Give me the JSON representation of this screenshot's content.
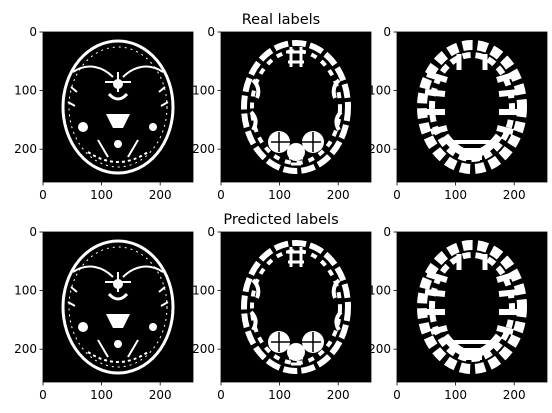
{
  "figure": {
    "row_titles": [
      "Real labels",
      "Predicted labels"
    ]
  },
  "chart_data": {
    "type": "image-grid",
    "rows": 2,
    "cols": 3,
    "image_size": [
      256,
      256
    ],
    "xticks": [
      0,
      100,
      200
    ],
    "yticks": [
      0,
      100,
      200
    ],
    "xlim": [
      0,
      256
    ],
    "ylim": [
      256,
      0
    ],
    "colormap": "gray",
    "background_color": "#000000",
    "foreground_color": "#ffffff",
    "panels": [
      {
        "row": 0,
        "col": 0,
        "title": "",
        "content": "label map 1 (thin boundary)"
      },
      {
        "row": 0,
        "col": 1,
        "title": "Real labels",
        "content": "label map 2 (cortex)"
      },
      {
        "row": 0,
        "col": 2,
        "title": "",
        "content": "label map 3 (white matter)"
      },
      {
        "row": 1,
        "col": 0,
        "title": "",
        "content": "label map 1 (thin boundary)"
      },
      {
        "row": 1,
        "col": 1,
        "title": "Predicted labels",
        "content": "label map 2 (cortex)"
      },
      {
        "row": 1,
        "col": 2,
        "title": "",
        "content": "label map 3 (white matter)"
      }
    ]
  }
}
